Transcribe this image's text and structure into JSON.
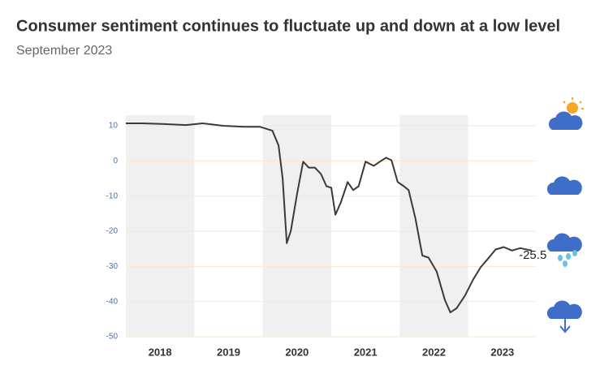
{
  "chart_data": {
    "type": "line",
    "title": "Consumer sentiment continues to fluctuate up and down at a low level",
    "subtitle": "September 2023",
    "x": [
      2018.0,
      2018.24,
      2018.53,
      2018.88,
      2019.12,
      2019.42,
      2019.72,
      2019.96,
      2020.14,
      2020.23,
      2020.29,
      2020.35,
      2020.41,
      2020.5,
      2020.59,
      2020.67,
      2020.76,
      2020.85,
      2020.93,
      2021.0,
      2021.06,
      2021.14,
      2021.24,
      2021.32,
      2021.4,
      2021.5,
      2021.62,
      2021.71,
      2021.8,
      2021.88,
      2021.97,
      2022.06,
      2022.13,
      2022.23,
      2022.33,
      2022.42,
      2022.54,
      2022.66,
      2022.74,
      2022.83,
      2022.95,
      2023.07,
      2023.18,
      2023.28,
      2023.4,
      2023.52,
      2023.64,
      2023.76,
      2023.93
    ],
    "values": [
      10.7,
      10.7,
      10.5,
      10.2,
      10.7,
      10.0,
      9.7,
      9.7,
      8.6,
      4.4,
      -4.9,
      -23.4,
      -19.9,
      -9.5,
      -0.2,
      -1.9,
      -1.9,
      -3.7,
      -7.2,
      -7.6,
      -15.3,
      -11.8,
      -6.0,
      -8.3,
      -7.2,
      -0.2,
      -1.4,
      -0.2,
      0.9,
      0.2,
      -6.0,
      -7.2,
      -8.3,
      -16.4,
      -26.9,
      -27.5,
      -31.5,
      -39.6,
      -43.1,
      -41.9,
      -38.4,
      -33.8,
      -30.3,
      -28.0,
      -25.2,
      -24.5,
      -25.5,
      -24.8,
      -25.5
    ],
    "color": "#3a3a3a",
    "xlim": [
      2018,
      2024
    ],
    "xticks": [
      {
        "value": 2018.5,
        "label": "2018"
      },
      {
        "value": 2019.5,
        "label": "2019"
      },
      {
        "value": 2020.5,
        "label": "2020"
      },
      {
        "value": 2021.5,
        "label": "2021"
      },
      {
        "value": 2022.5,
        "label": "2022"
      },
      {
        "value": 2023.5,
        "label": "2023"
      }
    ],
    "ylim": [
      -50,
      13
    ],
    "yticks": [
      10,
      0,
      -10,
      -20,
      -30,
      -40,
      -50
    ],
    "grid": true
  }
}
